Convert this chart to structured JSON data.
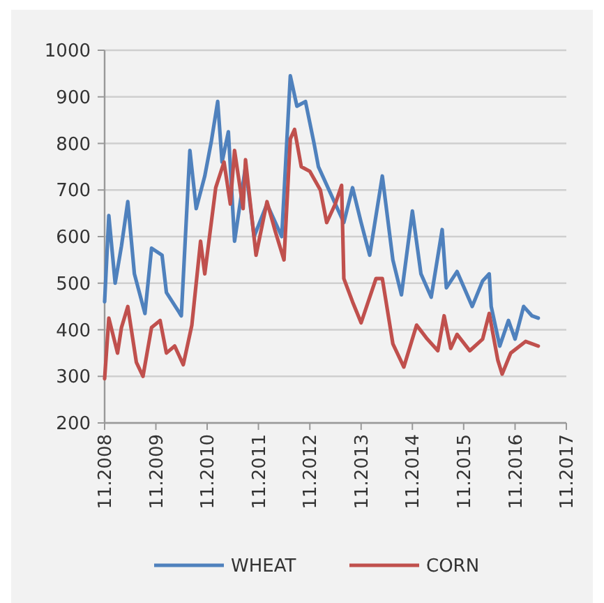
{
  "chart_data": {
    "type": "line",
    "xlim": [
      "2008-11",
      "2017-11"
    ],
    "ylim": [
      200,
      1000
    ],
    "xticks": [
      {
        "value": "2008-11",
        "label": "11.2008"
      },
      {
        "value": "2009-11",
        "label": "11.2009"
      },
      {
        "value": "2010-11",
        "label": "11.2010"
      },
      {
        "value": "2011-11",
        "label": "11.2011"
      },
      {
        "value": "2012-11",
        "label": "11.2012"
      },
      {
        "value": "2013-11",
        "label": "11.2013"
      },
      {
        "value": "2014-11",
        "label": "11.2014"
      },
      {
        "value": "2015-11",
        "label": "11.2015"
      },
      {
        "value": "2016-11",
        "label": "11.2016"
      },
      {
        "value": "2017-11",
        "label": "11.2017"
      }
    ],
    "yticks": [
      200,
      300,
      400,
      500,
      600,
      700,
      800,
      900,
      1000
    ],
    "grid": "y",
    "legend": "bottom",
    "line_style": "solid",
    "marker": "none",
    "series": [
      {
        "name": "WHEAT",
        "color": "#4f81bd",
        "x": [
          "2008-11-01",
          "2008-12-01",
          "2009-01-15",
          "2009-03-01",
          "2009-04-15",
          "2009-06-01",
          "2009-08-15",
          "2009-10-01",
          "2009-12-15",
          "2010-01-15",
          "2010-05-01",
          "2010-07-01",
          "2010-08-15",
          "2010-10-15",
          "2010-12-01",
          "2011-01-15",
          "2011-02-15",
          "2011-04-01",
          "2011-05-15",
          "2011-08-01",
          "2011-10-01",
          "2012-01-01",
          "2012-04-15",
          "2012-06-15",
          "2012-08-01",
          "2012-10-01",
          "2012-12-01",
          "2013-01-01",
          "2013-07-01",
          "2013-09-01",
          "2013-11-01",
          "2014-01-01",
          "2014-04-01",
          "2014-06-15",
          "2014-08-15",
          "2014-11-01",
          "2015-01-01",
          "2015-03-15",
          "2015-06-01",
          "2015-07-01",
          "2015-09-15",
          "2016-01-01",
          "2016-03-15",
          "2016-05-01",
          "2016-05-15",
          "2016-07-15",
          "2016-09-15",
          "2016-11-01",
          "2017-01-01",
          "2017-03-01",
          "2017-04-15"
        ],
        "values": [
          460,
          645,
          500,
          580,
          675,
          520,
          435,
          575,
          560,
          480,
          430,
          785,
          660,
          730,
          805,
          890,
          760,
          825,
          590,
          750,
          600,
          670,
          600,
          945,
          880,
          890,
          800,
          750,
          630,
          705,
          630,
          560,
          730,
          550,
          475,
          655,
          520,
          470,
          615,
          490,
          525,
          450,
          505,
          520,
          450,
          365,
          420,
          380,
          450,
          430,
          425
        ]
      },
      {
        "name": "CORN",
        "color": "#c0504d",
        "x": [
          "2008-11-01",
          "2008-12-01",
          "2009-02-01",
          "2009-03-01",
          "2009-04-15",
          "2009-06-15",
          "2009-08-01",
          "2009-10-01",
          "2009-12-01",
          "2010-01-15",
          "2010-03-15",
          "2010-05-15",
          "2010-07-15",
          "2010-09-15",
          "2010-10-15",
          "2011-01-01",
          "2011-03-01",
          "2011-04-15",
          "2011-05-15",
          "2011-07-15",
          "2011-08-01",
          "2011-10-15",
          "2012-01-01",
          "2012-03-01",
          "2012-05-01",
          "2012-06-15",
          "2012-07-15",
          "2012-09-01",
          "2012-11-01",
          "2013-01-15",
          "2013-03-01",
          "2013-05-01",
          "2013-06-15",
          "2013-07-01",
          "2013-09-01",
          "2013-11-01",
          "2014-02-15",
          "2014-04-01",
          "2014-06-15",
          "2014-09-01",
          "2014-12-01",
          "2015-02-15",
          "2015-05-01",
          "2015-06-15",
          "2015-08-01",
          "2015-09-15",
          "2015-12-15",
          "2016-03-15",
          "2016-05-01",
          "2016-07-01",
          "2016-08-01",
          "2016-10-01",
          "2017-01-15",
          "2017-04-15"
        ],
        "values": [
          295,
          425,
          350,
          405,
          450,
          330,
          300,
          405,
          420,
          350,
          365,
          325,
          410,
          590,
          520,
          705,
          760,
          670,
          785,
          660,
          765,
          560,
          675,
          610,
          550,
          810,
          830,
          750,
          740,
          700,
          630,
          670,
          710,
          510,
          460,
          415,
          510,
          510,
          370,
          320,
          410,
          380,
          355,
          430,
          360,
          390,
          355,
          380,
          435,
          335,
          305,
          350,
          375,
          365
        ]
      }
    ]
  }
}
